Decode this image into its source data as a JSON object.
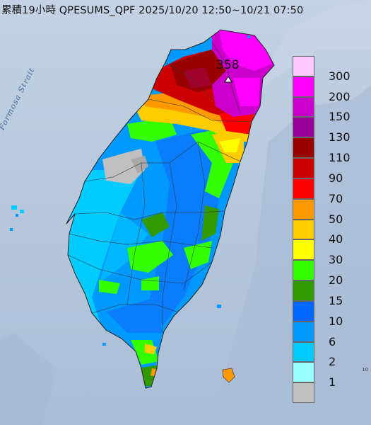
{
  "title": "累積19小時 QPESUMS_QPF 2025/10/20 12:50~10/21 07:50",
  "strait_label": "Formosa Strait",
  "peak_value": "358",
  "legend": [
    {
      "label": "300",
      "color": "#ffc8ff"
    },
    {
      "label": "200",
      "color": "#ff00ff"
    },
    {
      "label": "150",
      "color": "#cc00cc"
    },
    {
      "label": "130",
      "color": "#990099"
    },
    {
      "label": "110",
      "color": "#990000"
    },
    {
      "label": "90",
      "color": "#cc0000"
    },
    {
      "label": "70",
      "color": "#ff0000"
    },
    {
      "label": "50",
      "color": "#ff9900"
    },
    {
      "label": "40",
      "color": "#ffcc00"
    },
    {
      "label": "30",
      "color": "#ffff00"
    },
    {
      "label": "20",
      "color": "#33ff00"
    },
    {
      "label": "15",
      "color": "#339900"
    },
    {
      "label": "10",
      "color": "#0066ff"
    },
    {
      "label": "6",
      "color": "#0099ff"
    },
    {
      "label": "2",
      "color": "#00ccff"
    },
    {
      "label": "1",
      "color": "#99ffff"
    },
    {
      "label": "",
      "color": "#c0c0c0"
    }
  ],
  "edge_label": "10"
}
